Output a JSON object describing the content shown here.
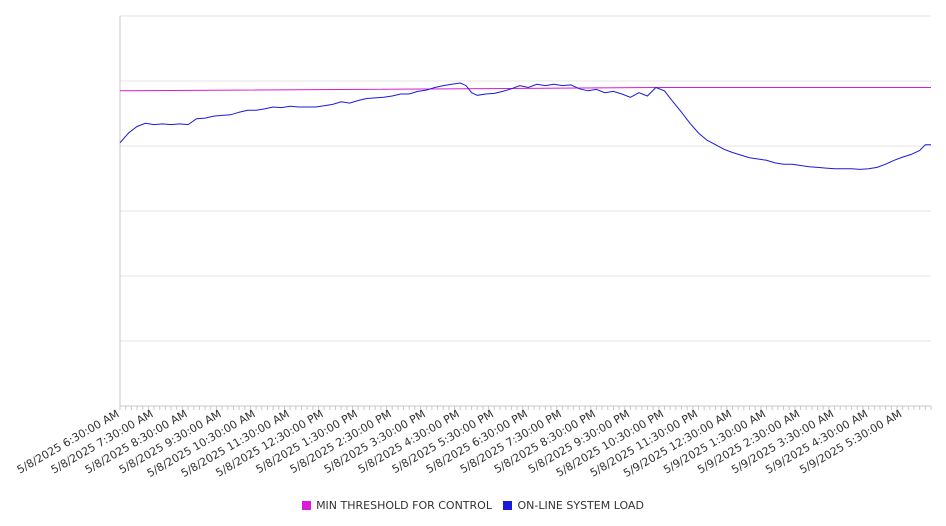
{
  "chart_data": {
    "type": "line",
    "title": "",
    "xlabel": "",
    "ylabel": "",
    "x_ticks": [
      "5/8/2025 6:30:00 AM",
      "5/8/2025 7:30:00 AM",
      "5/8/2025 8:30:00 AM",
      "5/8/2025 9:30:00 AM",
      "5/8/2025 10:30:00 AM",
      "5/8/2025 11:30:00 AM",
      "5/8/2025 12:30:00 PM",
      "5/8/2025 1:30:00 PM",
      "5/8/2025 2:30:00 PM",
      "5/8/2025 3:30:00 PM",
      "5/8/2025 4:30:00 PM",
      "5/8/2025 5:30:00 PM",
      "5/8/2025 6:30:00 PM",
      "5/8/2025 7:30:00 PM",
      "5/8/2025 8:30:00 PM",
      "5/8/2025 9:30:00 PM",
      "5/8/2025 10:30:00 PM",
      "5/8/2025 11:30:00 PM",
      "5/9/2025 12:30:00 AM",
      "5/9/2025 1:30:00 AM",
      "5/9/2025 2:30:00 AM",
      "5/9/2025 3:30:00 AM",
      "5/9/2025 4:30:00 AM",
      "5/9/2025 5:30:00 AM"
    ],
    "x_range": [
      "5/8/2025 6:30:00 AM",
      "5/9/2025 6:20:00 AM"
    ],
    "y_range": [
      0,
      6
    ],
    "y_ticks_labeled": false,
    "grid": "horizontal",
    "legend_position": "bottom-center",
    "series": [
      {
        "name": "MIN THRESHOLD FOR CONTROL",
        "color": "#d81bd8",
        "points": [
          [
            "5/8/2025 6:30:00 AM",
            4.85
          ],
          [
            "5/8/2025 10:30:00 PM",
            4.9
          ],
          [
            "5/9/2025 6:20:00 AM",
            4.9
          ]
        ]
      },
      {
        "name": "ON-LINE SYSTEM LOAD",
        "color": "#1a1adb",
        "points": [
          [
            "5/8/2025 6:30:00 AM",
            4.05
          ],
          [
            "5/8/2025 6:45:00 AM",
            4.2
          ],
          [
            "5/8/2025 7:00:00 AM",
            4.3
          ],
          [
            "5/8/2025 7:15:00 AM",
            4.35
          ],
          [
            "5/8/2025 7:30:00 AM",
            4.33
          ],
          [
            "5/8/2025 7:45:00 AM",
            4.34
          ],
          [
            "5/8/2025 8:00:00 AM",
            4.33
          ],
          [
            "5/8/2025 8:15:00 AM",
            4.34
          ],
          [
            "5/8/2025 8:30:00 AM",
            4.33
          ],
          [
            "5/8/2025 8:45:00 AM",
            4.42
          ],
          [
            "5/8/2025 9:00:00 AM",
            4.43
          ],
          [
            "5/8/2025 9:15:00 AM",
            4.46
          ],
          [
            "5/8/2025 9:30:00 AM",
            4.47
          ],
          [
            "5/8/2025 9:45:00 AM",
            4.48
          ],
          [
            "5/8/2025 10:00:00 AM",
            4.52
          ],
          [
            "5/8/2025 10:15:00 AM",
            4.55
          ],
          [
            "5/8/2025 10:30:00 AM",
            4.55
          ],
          [
            "5/8/2025 10:45:00 AM",
            4.57
          ],
          [
            "5/8/2025 11:00:00 AM",
            4.6
          ],
          [
            "5/8/2025 11:15:00 AM",
            4.59
          ],
          [
            "5/8/2025 11:30:00 AM",
            4.61
          ],
          [
            "5/8/2025 11:45:00 AM",
            4.6
          ],
          [
            "5/8/2025 12:00:00 PM",
            4.6
          ],
          [
            "5/8/2025 12:15:00 PM",
            4.6
          ],
          [
            "5/8/2025 12:30:00 PM",
            4.62
          ],
          [
            "5/8/2025 12:45:00 PM",
            4.64
          ],
          [
            "5/8/2025 1:00:00 PM",
            4.68
          ],
          [
            "5/8/2025 1:15:00 PM",
            4.66
          ],
          [
            "5/8/2025 1:30:00 PM",
            4.7
          ],
          [
            "5/8/2025 1:45:00 PM",
            4.73
          ],
          [
            "5/8/2025 2:00:00 PM",
            4.74
          ],
          [
            "5/8/2025 2:15:00 PM",
            4.75
          ],
          [
            "5/8/2025 2:30:00 PM",
            4.77
          ],
          [
            "5/8/2025 2:45:00 PM",
            4.8
          ],
          [
            "5/8/2025 3:00:00 PM",
            4.8
          ],
          [
            "5/8/2025 3:15:00 PM",
            4.84
          ],
          [
            "5/8/2025 3:30:00 PM",
            4.86
          ],
          [
            "5/8/2025 3:45:00 PM",
            4.9
          ],
          [
            "5/8/2025 4:00:00 PM",
            4.93
          ],
          [
            "5/8/2025 4:15:00 PM",
            4.95
          ],
          [
            "5/8/2025 4:30:00 PM",
            4.97
          ],
          [
            "5/8/2025 4:40:00 PM",
            4.93
          ],
          [
            "5/8/2025 4:50:00 PM",
            4.82
          ],
          [
            "5/8/2025 5:00:00 PM",
            4.78
          ],
          [
            "5/8/2025 5:15:00 PM",
            4.8
          ],
          [
            "5/8/2025 5:30:00 PM",
            4.81
          ],
          [
            "5/8/2025 5:45:00 PM",
            4.84
          ],
          [
            "5/8/2025 6:00:00 PM",
            4.88
          ],
          [
            "5/8/2025 6:15:00 PM",
            4.93
          ],
          [
            "5/8/2025 6:30:00 PM",
            4.9
          ],
          [
            "5/8/2025 6:45:00 PM",
            4.95
          ],
          [
            "5/8/2025 7:00:00 PM",
            4.93
          ],
          [
            "5/8/2025 7:15:00 PM",
            4.95
          ],
          [
            "5/8/2025 7:30:00 PM",
            4.93
          ],
          [
            "5/8/2025 7:45:00 PM",
            4.94
          ],
          [
            "5/8/2025 8:00:00 PM",
            4.88
          ],
          [
            "5/8/2025 8:15:00 PM",
            4.85
          ],
          [
            "5/8/2025 8:30:00 PM",
            4.87
          ],
          [
            "5/8/2025 8:45:00 PM",
            4.82
          ],
          [
            "5/8/2025 9:00:00 PM",
            4.84
          ],
          [
            "5/8/2025 9:15:00 PM",
            4.8
          ],
          [
            "5/8/2025 9:30:00 PM",
            4.75
          ],
          [
            "5/8/2025 9:45:00 PM",
            4.82
          ],
          [
            "5/8/2025 10:00:00 PM",
            4.77
          ],
          [
            "5/8/2025 10:15:00 PM",
            4.9
          ],
          [
            "5/8/2025 10:30:00 PM",
            4.85
          ],
          [
            "5/8/2025 10:45:00 PM",
            4.68
          ],
          [
            "5/8/2025 11:00:00 PM",
            4.52
          ],
          [
            "5/8/2025 11:15:00 PM",
            4.35
          ],
          [
            "5/8/2025 11:30:00 PM",
            4.2
          ],
          [
            "5/8/2025 11:45:00 PM",
            4.09
          ],
          [
            "5/9/2025 12:00:00 AM",
            4.02
          ],
          [
            "5/9/2025 12:15:00 AM",
            3.95
          ],
          [
            "5/9/2025 12:30:00 AM",
            3.9
          ],
          [
            "5/9/2025 12:45:00 AM",
            3.86
          ],
          [
            "5/9/2025 1:00:00 AM",
            3.82
          ],
          [
            "5/9/2025 1:15:00 AM",
            3.8
          ],
          [
            "5/9/2025 1:30:00 AM",
            3.78
          ],
          [
            "5/9/2025 1:45:00 AM",
            3.74
          ],
          [
            "5/9/2025 2:00:00 AM",
            3.72
          ],
          [
            "5/9/2025 2:15:00 AM",
            3.72
          ],
          [
            "5/9/2025 2:30:00 AM",
            3.7
          ],
          [
            "5/9/2025 2:45:00 AM",
            3.68
          ],
          [
            "5/9/2025 3:00:00 AM",
            3.67
          ],
          [
            "5/9/2025 3:15:00 AM",
            3.66
          ],
          [
            "5/9/2025 3:30:00 AM",
            3.65
          ],
          [
            "5/9/2025 3:45:00 AM",
            3.65
          ],
          [
            "5/9/2025 4:00:00 AM",
            3.65
          ],
          [
            "5/9/2025 4:15:00 AM",
            3.64
          ],
          [
            "5/9/2025 4:30:00 AM",
            3.65
          ],
          [
            "5/9/2025 4:45:00 AM",
            3.67
          ],
          [
            "5/9/2025 5:00:00 AM",
            3.72
          ],
          [
            "5/9/2025 5:15:00 AM",
            3.78
          ],
          [
            "5/9/2025 5:30:00 AM",
            3.83
          ],
          [
            "5/9/2025 5:45:00 AM",
            3.87
          ],
          [
            "5/9/2025 6:00:00 AM",
            3.93
          ],
          [
            "5/9/2025 6:10:00 AM",
            4.02
          ],
          [
            "5/9/2025 6:20:00 AM",
            4.02
          ]
        ]
      }
    ]
  },
  "legend": {
    "items": [
      {
        "label": "MIN THRESHOLD FOR CONTROL",
        "color": "#d81bd8"
      },
      {
        "label": "ON-LINE SYSTEM LOAD",
        "color": "#1a1adb"
      }
    ]
  }
}
